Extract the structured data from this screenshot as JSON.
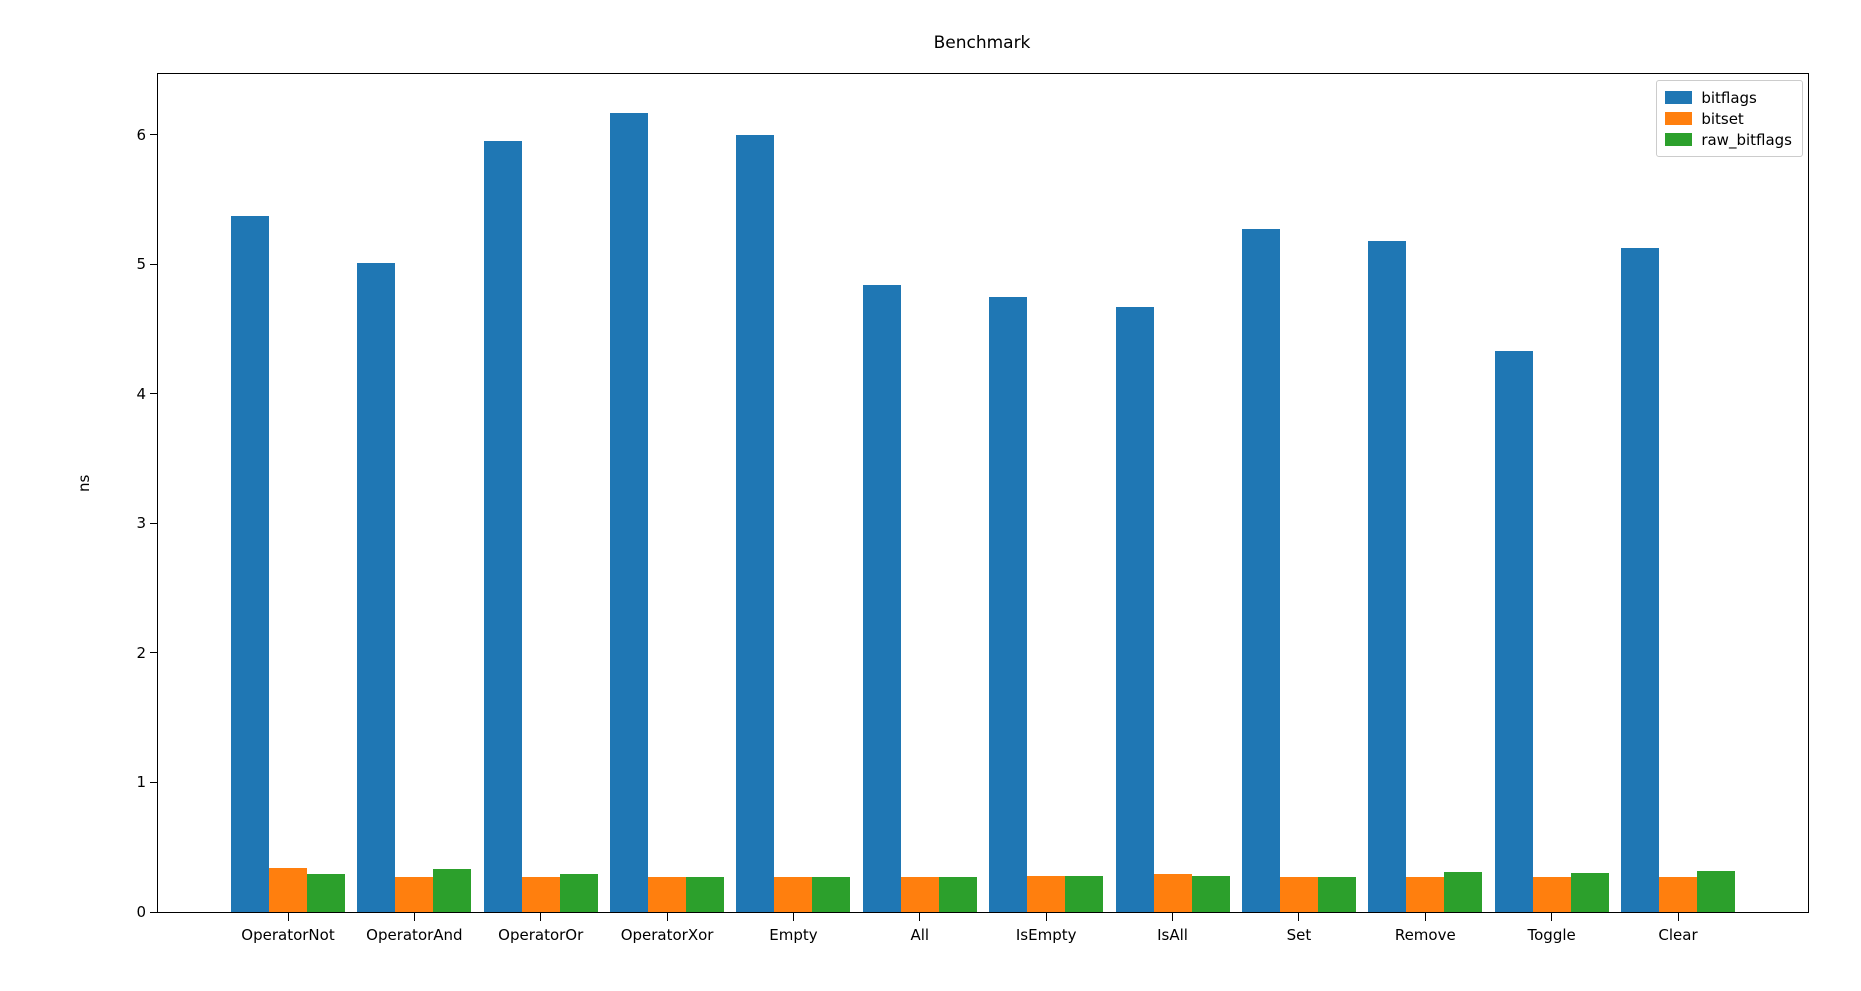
{
  "chart_data": {
    "type": "bar",
    "title": "Benchmark",
    "xlabel": "",
    "ylabel": "ns",
    "ylim": [
      0,
      6.47
    ],
    "grid": false,
    "legend_position": "upper right",
    "yticks": [
      0,
      1,
      2,
      3,
      4,
      5,
      6
    ],
    "categories": [
      "OperatorNot",
      "OperatorAnd",
      "OperatorOr",
      "OperatorXor",
      "Empty",
      "All",
      "IsEmpty",
      "IsAll",
      "Set",
      "Remove",
      "Toggle",
      "Clear"
    ],
    "series": [
      {
        "name": "bitflags",
        "color": "#1f77b4",
        "values": [
          5.37,
          5.01,
          5.95,
          6.17,
          6.0,
          4.84,
          4.75,
          4.67,
          5.27,
          5.18,
          4.33,
          5.13
        ]
      },
      {
        "name": "bitset",
        "color": "#ff7f0e",
        "values": [
          0.34,
          0.27,
          0.27,
          0.27,
          0.27,
          0.27,
          0.28,
          0.29,
          0.27,
          0.27,
          0.27,
          0.27
        ]
      },
      {
        "name": "raw_bitflags",
        "color": "#2ca02c",
        "values": [
          0.29,
          0.33,
          0.29,
          0.27,
          0.27,
          0.27,
          0.28,
          0.28,
          0.27,
          0.31,
          0.3,
          0.32
        ]
      }
    ]
  }
}
